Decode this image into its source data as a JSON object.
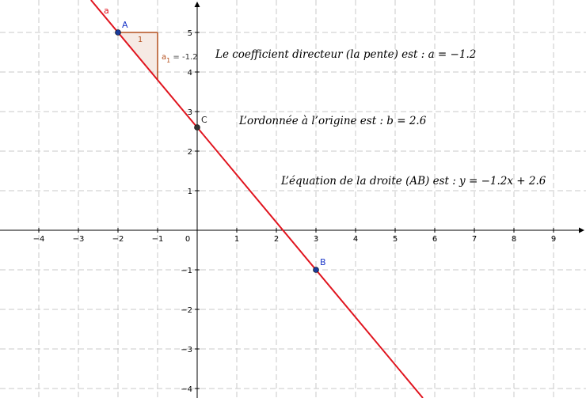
{
  "graph": {
    "line": {
      "name": "a",
      "slope": -1.2,
      "intercept": 2.6,
      "color": "#e0141e"
    },
    "points": [
      {
        "name": "A",
        "x": -2,
        "y": 5,
        "label_color": "#1a36c8",
        "dot_color": "#1a3a9a"
      },
      {
        "name": "B",
        "x": 3,
        "y": -1,
        "label_color": "#1a36c8",
        "dot_color": "#1a3a9a"
      },
      {
        "name": "C",
        "x": 0,
        "y": 2.6,
        "label_color": "#222222",
        "dot_color": "#333333"
      }
    ],
    "slope_triangle": {
      "from_x": -2,
      "to_x": -1,
      "run_label": "1",
      "slope_label_main": "a",
      "slope_label_sub": "1",
      "slope_label_value": " = -1.2",
      "color": "#b4501e"
    },
    "x_ticks": [
      "-4",
      "-3",
      "-2",
      "-1",
      "0",
      "1",
      "2",
      "3",
      "4",
      "5",
      "6",
      "7",
      "8",
      "9"
    ],
    "y_ticks": [
      "-4",
      "-3",
      "-2",
      "-1",
      "1",
      "2",
      "3",
      "4",
      "5"
    ],
    "x_tick_values": [
      -4,
      -3,
      -2,
      -1,
      0,
      1,
      2,
      3,
      4,
      5,
      6,
      7,
      8,
      9
    ],
    "y_tick_values": [
      -4,
      -3,
      -2,
      -1,
      1,
      2,
      3,
      4,
      5
    ]
  },
  "texts": {
    "slope_text": "Le coefficient directeur (la pente) est : a = −1.2",
    "intercept_text": "L’ordonnée à l’origine est : b = 2.6",
    "equation_text": "L’équation de la droite (AB) est : y = −1.2x + 2.6"
  }
}
